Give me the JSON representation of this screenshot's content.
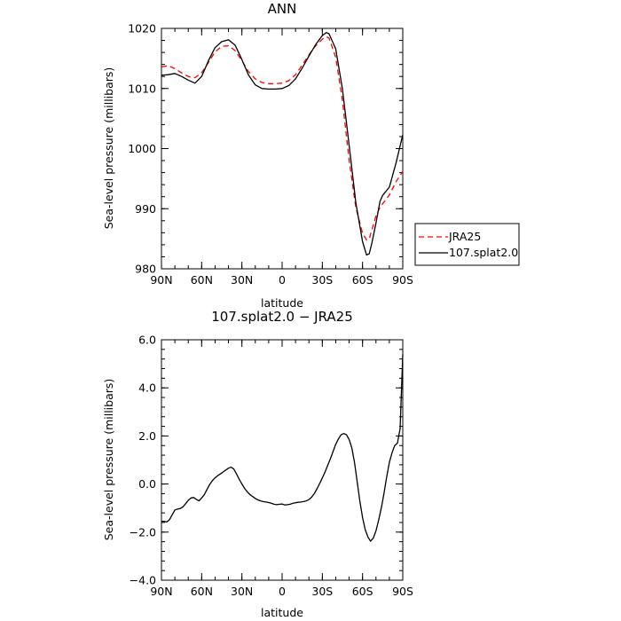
{
  "chart_data": [
    {
      "type": "line",
      "title": "ANN",
      "xlabel": "latitude",
      "ylabel": "Sea-level pressure (millibars)",
      "xlim": [
        90,
        -90
      ],
      "ylim": [
        980,
        1020
      ],
      "x_ticks": [
        90,
        60,
        30,
        0,
        -30,
        -60,
        -90
      ],
      "x_tick_labels": [
        "90N",
        "60N",
        "30N",
        "0",
        "30S",
        "60S",
        "90S"
      ],
      "y_ticks": [
        980,
        990,
        1000,
        1010,
        1020
      ],
      "y_tick_labels": [
        "980",
        "990",
        "1000",
        "1010",
        "1020"
      ],
      "grid": false,
      "legend_position": "right, outside plot",
      "series": [
        {
          "name": "JRA25",
          "color": "#ff0000",
          "dash": "dashed",
          "x": [
            90,
            85,
            80,
            75,
            70,
            65,
            60,
            55,
            50,
            45,
            40,
            35,
            30,
            25,
            20,
            15,
            10,
            5,
            0,
            -5,
            -10,
            -15,
            -20,
            -25,
            -30,
            -33,
            -35,
            -40,
            -45,
            -50,
            -55,
            -60,
            -63,
            -65,
            -67,
            -70,
            -73,
            -75,
            -80,
            -85,
            -90
          ],
          "y": [
            1013.6,
            1013.8,
            1013.3,
            1012.6,
            1012.0,
            1011.8,
            1012.6,
            1014.3,
            1016.1,
            1017.0,
            1017.1,
            1016.3,
            1014.6,
            1012.8,
            1011.6,
            1011.0,
            1010.8,
            1010.8,
            1010.9,
            1011.3,
            1012.3,
            1013.9,
            1015.6,
            1017.1,
            1018.2,
            1018.6,
            1018.4,
            1015.2,
            1008.0,
            998.0,
            990.2,
            985.9,
            984.8,
            985.0,
            986.5,
            988.8,
            990.2,
            990.8,
            992.3,
            994.5,
            996.2
          ]
        },
        {
          "name": "107.splat2.0",
          "color": "#000000",
          "dash": "solid",
          "x": [
            90,
            85,
            80,
            75,
            70,
            65,
            60,
            55,
            50,
            45,
            40,
            35,
            30,
            25,
            20,
            15,
            10,
            5,
            0,
            -5,
            -10,
            -15,
            -20,
            -25,
            -30,
            -33,
            -35,
            -40,
            -45,
            -50,
            -55,
            -60,
            -63,
            -65,
            -67,
            -70,
            -73,
            -75,
            -80,
            -85,
            -90
          ],
          "y": [
            1012.2,
            1012.3,
            1012.5,
            1012.0,
            1011.4,
            1010.9,
            1012.0,
            1014.6,
            1016.8,
            1017.8,
            1018.1,
            1017.2,
            1014.8,
            1012.2,
            1010.6,
            1010.0,
            1009.9,
            1009.9,
            1010.0,
            1010.5,
            1011.6,
            1013.4,
            1015.4,
            1017.3,
            1018.8,
            1019.3,
            1019.1,
            1016.6,
            1009.9,
            1000.5,
            991.0,
            984.5,
            982.3,
            982.5,
            984.3,
            987.6,
            991.2,
            992.2,
            993.6,
            997.6,
            1002.3
          ]
        }
      ]
    },
    {
      "type": "line",
      "title": "107.splat2.0 − JRA25",
      "xlabel": "latitude",
      "ylabel": "Sea-level pressure (millibars)",
      "xlim": [
        90,
        -90
      ],
      "ylim": [
        -4,
        6
      ],
      "x_ticks": [
        90,
        60,
        30,
        0,
        -30,
        -60,
        -90
      ],
      "x_tick_labels": [
        "90N",
        "60N",
        "30N",
        "0",
        "30S",
        "60S",
        "90S"
      ],
      "y_ticks": [
        -4,
        -2,
        0,
        2,
        4,
        6
      ],
      "y_tick_labels": [
        "−4.0",
        "−2.0",
        "0.0",
        "2.0",
        "4.0",
        "6.0"
      ],
      "grid": false,
      "series": [
        {
          "color": "#000000",
          "dash": "solid",
          "x": [
            90,
            88,
            86,
            84,
            82,
            80,
            78,
            76,
            74,
            72,
            70,
            68,
            66,
            64,
            62,
            60,
            58,
            56,
            54,
            52,
            50,
            48,
            46,
            44,
            42,
            40,
            38,
            36,
            34,
            32,
            30,
            28,
            26,
            24,
            22,
            20,
            18,
            16,
            14,
            12,
            10,
            8,
            6,
            4,
            2,
            0,
            -2,
            -4,
            -6,
            -8,
            -10,
            -12,
            -14,
            -16,
            -18,
            -20,
            -22,
            -24,
            -26,
            -28,
            -30,
            -32,
            -34,
            -36,
            -38,
            -40,
            -42,
            -44,
            -46,
            -48,
            -50,
            -52,
            -54,
            -56,
            -58,
            -60,
            -62,
            -64,
            -66,
            -68,
            -70,
            -72,
            -74,
            -76,
            -78,
            -80,
            -82,
            -84,
            -86,
            -88,
            -90
          ],
          "y": [
            -1.55,
            -1.55,
            -1.58,
            -1.48,
            -1.28,
            -1.08,
            -1.04,
            -1.02,
            -0.95,
            -0.82,
            -0.68,
            -0.58,
            -0.56,
            -0.64,
            -0.7,
            -0.58,
            -0.44,
            -0.22,
            -0.02,
            0.14,
            0.26,
            0.35,
            0.42,
            0.5,
            0.58,
            0.66,
            0.7,
            0.62,
            0.42,
            0.2,
            0.0,
            -0.18,
            -0.32,
            -0.44,
            -0.52,
            -0.6,
            -0.66,
            -0.7,
            -0.73,
            -0.75,
            -0.77,
            -0.8,
            -0.84,
            -0.86,
            -0.84,
            -0.83,
            -0.87,
            -0.86,
            -0.84,
            -0.8,
            -0.78,
            -0.76,
            -0.75,
            -0.73,
            -0.7,
            -0.65,
            -0.55,
            -0.4,
            -0.2,
            0.02,
            0.25,
            0.5,
            0.78,
            1.05,
            1.35,
            1.65,
            1.88,
            2.05,
            2.1,
            2.05,
            1.85,
            1.5,
            0.9,
            0.1,
            -0.7,
            -1.4,
            -1.9,
            -2.2,
            -2.38,
            -2.25,
            -1.95,
            -1.5,
            -1.0,
            -0.4,
            0.3,
            0.9,
            1.3,
            1.6,
            1.7,
            2.3,
            5.4
          ]
        }
      ]
    }
  ]
}
